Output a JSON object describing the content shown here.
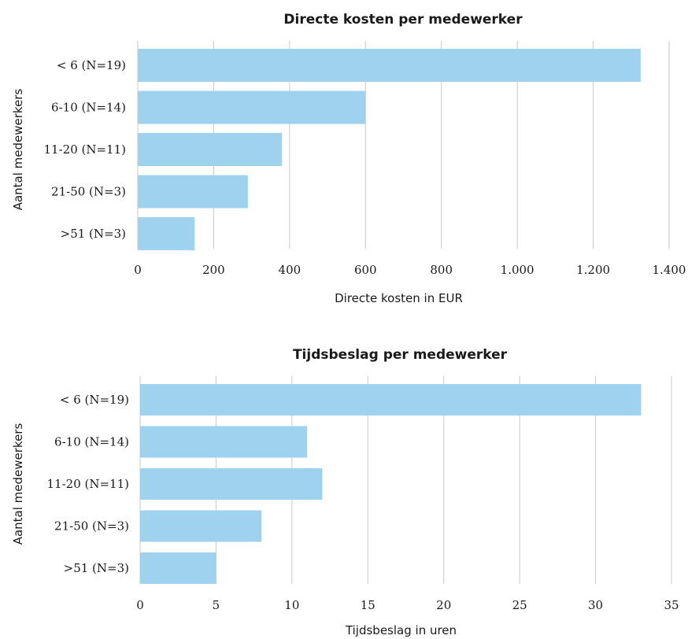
{
  "colors": {
    "bar": "#9ed2ee",
    "grid": "#c8c8c8"
  },
  "chart_data": [
    {
      "type": "bar",
      "orientation": "horizontal",
      "title": "Directe kosten per medewerker",
      "xlabel": "Directe kosten in EUR",
      "ylabel": "Aantal medewerkers",
      "categories": [
        "< 6 (N=19)",
        "6-10 (N=14)",
        "11-20 (N=11)",
        "21-50 (N=3)",
        ">51 (N=3)"
      ],
      "values": [
        1325,
        600,
        380,
        290,
        150
      ],
      "xlim": [
        0,
        1400
      ],
      "ticks": [
        0,
        200,
        400,
        600,
        800,
        1000,
        1200,
        1400
      ],
      "tick_labels": [
        "0",
        "200",
        "400",
        "600",
        "800",
        "1.000",
        "1.200",
        "1.400"
      ],
      "grid": "vertical"
    },
    {
      "type": "bar",
      "orientation": "horizontal",
      "title": "Tijdsbeslag per medewerker",
      "xlabel": "Tijdsbeslag in uren",
      "ylabel": "Aantal medewerkers",
      "categories": [
        "< 6 (N=19)",
        "6-10 (N=14)",
        "11-20 (N=11)",
        "21-50 (N=3)",
        ">51 (N=3)"
      ],
      "values": [
        33,
        11,
        12,
        8,
        5
      ],
      "xlim": [
        0,
        35
      ],
      "ticks": [
        0,
        5,
        10,
        15,
        20,
        25,
        30,
        35
      ],
      "tick_labels": [
        "0",
        "5",
        "10",
        "15",
        "20",
        "25",
        "30",
        "35"
      ],
      "grid": "vertical"
    }
  ]
}
